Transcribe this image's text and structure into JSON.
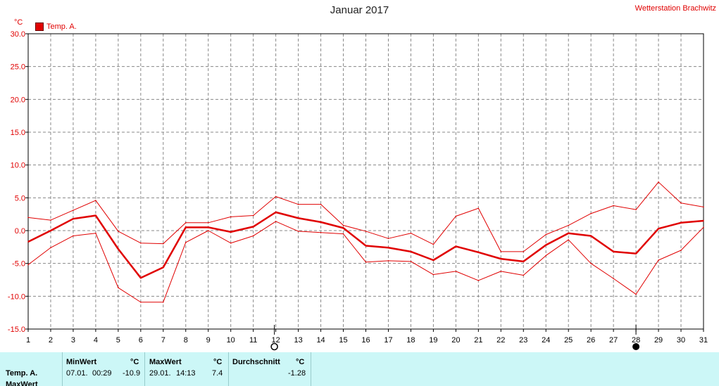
{
  "title": "Januar 2017",
  "station": "Wetterstation Brachwitz",
  "unit": "°C",
  "legend": "Temp. A.",
  "colors": {
    "series": "#e00000",
    "grid": "#888888",
    "stats_bg": "#ccf7f7"
  },
  "chart_data": {
    "type": "line",
    "x": [
      1,
      2,
      3,
      4,
      5,
      6,
      7,
      8,
      9,
      10,
      11,
      12,
      13,
      14,
      15,
      16,
      17,
      18,
      19,
      20,
      21,
      22,
      23,
      24,
      25,
      26,
      27,
      28,
      29,
      30,
      31
    ],
    "ylim": [
      -15,
      30
    ],
    "yticks": [
      "30.0",
      "25.0",
      "20.0",
      "15.0",
      "10.0",
      "5.0",
      "0.0",
      "-5.0",
      "-10.0",
      "-15.0"
    ],
    "grid": true,
    "legend_position": "top-left",
    "series": [
      {
        "name": "Temp. A.",
        "role": "max",
        "values": [
          2.0,
          1.6,
          3.1,
          4.6,
          -0.1,
          -1.9,
          -2.0,
          1.2,
          1.2,
          2.1,
          2.3,
          5.2,
          4.0,
          4.0,
          0.8,
          -0.1,
          -1.2,
          -0.4,
          -2.1,
          2.2,
          3.4,
          -3.2,
          -3.2,
          -0.6,
          0.8,
          2.6,
          3.8,
          3.2,
          7.4,
          4.2,
          3.6
        ]
      },
      {
        "name": "Temp. A.",
        "role": "avg",
        "values": [
          -1.7,
          0.0,
          1.8,
          2.3,
          -2.8,
          -7.2,
          -5.6,
          0.5,
          0.5,
          -0.2,
          0.6,
          2.8,
          1.9,
          1.3,
          0.4,
          -2.3,
          -2.6,
          -3.2,
          -4.5,
          -2.4,
          -3.3,
          -4.3,
          -4.7,
          -2.2,
          -0.4,
          -0.8,
          -3.2,
          -3.5,
          0.3,
          1.2,
          1.5
        ]
      },
      {
        "name": "Temp. A.",
        "role": "min",
        "values": [
          -5.2,
          -2.6,
          -0.8,
          -0.4,
          -8.7,
          -10.9,
          -10.9,
          -1.8,
          0.0,
          -1.9,
          -0.8,
          1.4,
          -0.1,
          -0.3,
          -0.5,
          -4.8,
          -4.6,
          -4.7,
          -6.7,
          -6.2,
          -7.6,
          -6.2,
          -6.8,
          -3.8,
          -1.4,
          -5.0,
          -7.3,
          -9.7,
          -4.5,
          -3.0,
          0.5
        ]
      }
    ],
    "markers": {
      "new_moon_day": 12,
      "full_moon_day": 28
    }
  },
  "stats": {
    "row_labels": [
      "Temp. A.",
      "MaxWert"
    ],
    "min": {
      "header": "MinWert",
      "unit": "°C",
      "date": "07.01.",
      "time": "00:29",
      "value": "-10.9"
    },
    "max": {
      "header": "MaxWert",
      "unit": "°C",
      "date": "29.01.",
      "time": "14:13",
      "value": "7.4"
    },
    "avg": {
      "header": "Durchschnitt",
      "unit": "°C",
      "value": "-1.28"
    }
  }
}
